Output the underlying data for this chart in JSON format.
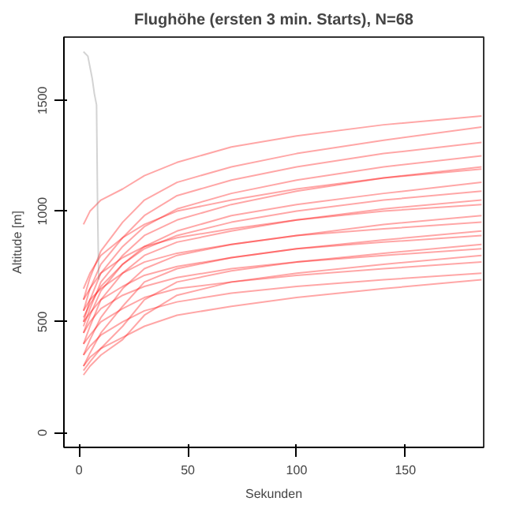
{
  "chart_data": {
    "type": "line",
    "title": "Flughöhe (ersten 3 min. Starts), N=68",
    "xlabel": "Sekunden",
    "ylabel": "Altitude [m]",
    "xlim": [
      -7,
      186
    ],
    "ylim": [
      -67,
      1786
    ],
    "xticks": [
      0,
      50,
      100,
      150
    ],
    "yticks": [
      0,
      500,
      1000,
      1500
    ],
    "grid": false,
    "x": [
      2,
      5,
      10,
      20,
      30,
      45,
      70,
      100,
      140,
      185
    ],
    "series": [
      {
        "color": "#ff0000",
        "values": [
          940,
          1000,
          1050,
          1100,
          1160,
          1220,
          1290,
          1340,
          1390,
          1430
        ]
      },
      {
        "color": "#ff0000",
        "values": [
          600,
          700,
          820,
          950,
          1050,
          1130,
          1200,
          1260,
          1320,
          1380
        ]
      },
      {
        "color": "#ff0000",
        "values": [
          550,
          650,
          760,
          880,
          980,
          1070,
          1140,
          1200,
          1260,
          1310
        ]
      },
      {
        "color": "#ff0000",
        "values": [
          500,
          600,
          720,
          840,
          930,
          1010,
          1080,
          1140,
          1200,
          1250
        ]
      },
      {
        "color": "#ff0000",
        "values": [
          480,
          560,
          680,
          800,
          890,
          960,
          1030,
          1090,
          1150,
          1200
        ]
      },
      {
        "color": "#ff0000",
        "values": [
          650,
          720,
          800,
          880,
          940,
          1000,
          1050,
          1100,
          1150,
          1190
        ]
      },
      {
        "color": "#ff0000",
        "values": [
          450,
          530,
          640,
          760,
          840,
          910,
          980,
          1030,
          1080,
          1130
        ]
      },
      {
        "color": "#ff0000",
        "values": [
          520,
          580,
          660,
          760,
          830,
          890,
          950,
          1000,
          1050,
          1090
        ]
      },
      {
        "color": "#ff0000",
        "values": [
          400,
          480,
          600,
          720,
          800,
          860,
          910,
          960,
          1010,
          1050
        ]
      },
      {
        "color": "#ff0000",
        "values": [
          600,
          650,
          720,
          790,
          840,
          880,
          920,
          960,
          1000,
          1030
        ]
      },
      {
        "color": "#ff0000",
        "values": [
          350,
          420,
          520,
          650,
          740,
          800,
          850,
          890,
          940,
          980
        ]
      },
      {
        "color": "#ff0000",
        "values": [
          550,
          600,
          650,
          720,
          770,
          810,
          850,
          890,
          920,
          950
        ]
      },
      {
        "color": "#ff0000",
        "values": [
          300,
          360,
          450,
          570,
          680,
          740,
          790,
          830,
          870,
          910
        ]
      },
      {
        "color": "#ff0000",
        "values": [
          500,
          540,
          600,
          660,
          710,
          750,
          790,
          830,
          860,
          890
        ]
      },
      {
        "color": "#ff0000",
        "values": [
          280,
          320,
          380,
          480,
          600,
          680,
          730,
          770,
          810,
          850
        ]
      },
      {
        "color": "#ff0000",
        "values": [
          450,
          500,
          560,
          620,
          660,
          700,
          740,
          770,
          800,
          830
        ]
      },
      {
        "color": "#ff0000",
        "values": [
          260,
          300,
          350,
          420,
          530,
          620,
          680,
          720,
          760,
          800
        ]
      },
      {
        "color": "#ff0000",
        "values": [
          400,
          440,
          500,
          560,
          610,
          650,
          680,
          710,
          740,
          770
        ]
      },
      {
        "color": "#ff0000",
        "values": [
          350,
          390,
          440,
          500,
          550,
          590,
          630,
          660,
          690,
          720
        ]
      },
      {
        "color": "#ff0000",
        "values": [
          300,
          340,
          380,
          430,
          480,
          530,
          570,
          610,
          650,
          690
        ]
      },
      {
        "color": "#808080",
        "x": [
          2,
          4,
          6,
          7,
          8,
          8.5,
          9
        ],
        "values": [
          1720,
          1700,
          1600,
          1530,
          1480,
          1000,
          690
        ]
      }
    ]
  }
}
